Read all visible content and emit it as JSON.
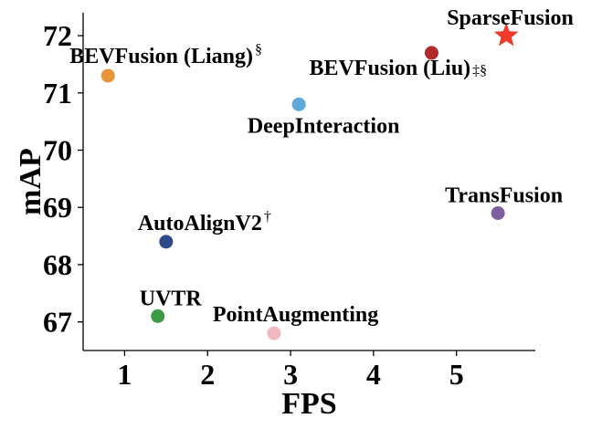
{
  "chart_data": {
    "type": "scatter",
    "xlabel": "FPS",
    "ylabel": "mAP",
    "xlim": [
      0.5,
      5.95
    ],
    "ylim": [
      66.5,
      72.4
    ],
    "xticks": [
      1,
      2,
      3,
      4,
      5
    ],
    "yticks": [
      67,
      68,
      69,
      70,
      71,
      72
    ],
    "grid": false,
    "points": [
      {
        "name": "BEVFusion (Liang)",
        "sup": "§",
        "x": 0.8,
        "y": 71.3,
        "color": "#e8953a",
        "marker": "circle",
        "label_pos": "above-center"
      },
      {
        "name": "BEVFusion (Liu)",
        "sup": "‡§",
        "x": 4.7,
        "y": 71.7,
        "color": "#b22a2a",
        "marker": "circle",
        "label_pos": "below-left"
      },
      {
        "name": "DeepInteraction",
        "sup": "",
        "x": 3.1,
        "y": 70.8,
        "color": "#5fa8d8",
        "marker": "circle",
        "label_pos": "below-center"
      },
      {
        "name": "SparseFusion",
        "sup": "",
        "x": 5.6,
        "y": 72.0,
        "color": "#ee3a2b",
        "marker": "star",
        "label_pos": "above-left"
      },
      {
        "name": "TransFusion",
        "sup": "",
        "x": 5.5,
        "y": 68.9,
        "color": "#7e5fa0",
        "marker": "circle",
        "label_pos": "above-center"
      },
      {
        "name": "AutoAlignV2",
        "sup": "†",
        "x": 1.5,
        "y": 68.4,
        "color": "#2e4a8a",
        "marker": "circle",
        "label_pos": "above-right"
      },
      {
        "name": "UVTR",
        "sup": "",
        "x": 1.4,
        "y": 67.1,
        "color": "#3d9a45",
        "marker": "circle",
        "label_pos": "above-right"
      },
      {
        "name": "PointAugmenting",
        "sup": "",
        "x": 2.8,
        "y": 66.8,
        "color": "#f2b8c0",
        "marker": "circle",
        "label_pos": "above-right"
      }
    ]
  }
}
